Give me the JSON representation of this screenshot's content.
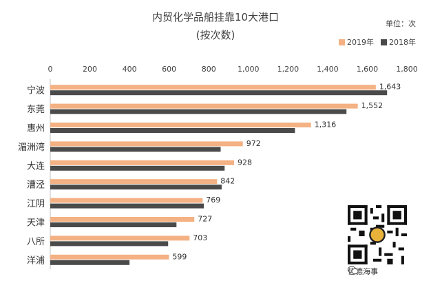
{
  "chart_data": {
    "type": "bar",
    "orientation": "horizontal",
    "title": "内贸化学品船挂靠10大港口",
    "subtitle": "(按次数)",
    "unit": "单位：次",
    "categories": [
      "宁波",
      "东莞",
      "惠州",
      "湄洲湾",
      "大连",
      "漕泾",
      "江阴",
      "天津",
      "八所",
      "洋浦"
    ],
    "series": [
      {
        "name": "2019年",
        "color": "#f4b183",
        "values": [
          1643,
          1552,
          1316,
          972,
          928,
          842,
          769,
          727,
          703,
          599
        ]
      },
      {
        "name": "2018年",
        "color": "#4a4a4a",
        "values": [
          1700,
          1495,
          1235,
          860,
          880,
          865,
          775,
          637,
          595,
          400
        ]
      }
    ],
    "data_labels": [
      "1,643",
      "1,552",
      "1,316",
      "972",
      "928",
      "842",
      "769",
      "727",
      "703",
      "599"
    ],
    "xlim": [
      0,
      1800
    ],
    "xticks": [
      "0",
      "200",
      "400",
      "600",
      "800",
      "1,000",
      "1,200",
      "1,400",
      "1,600",
      "1,800"
    ],
    "axis_position": "top",
    "legend_placement": "top-right",
    "grid": false
  },
  "watermark": {
    "account": "信德海事"
  }
}
